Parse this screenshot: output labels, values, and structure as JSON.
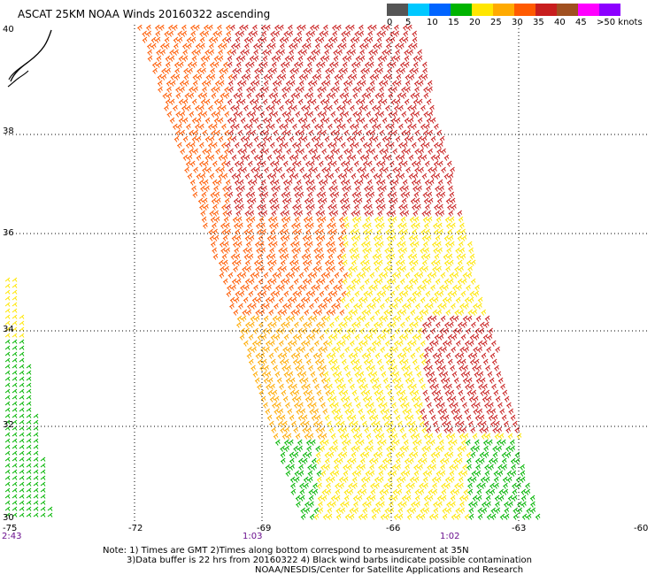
{
  "title": "ASCAT 25KM NOAA Winds 20160322 ascending",
  "legend": {
    "labels": [
      "0",
      "5",
      "10",
      "15",
      "20",
      "25",
      "30",
      "35",
      "40",
      "45",
      ">50 knots"
    ],
    "colors": [
      "#555555",
      "#00c8ff",
      "#0064ff",
      "#00b400",
      "#ffe600",
      "#ffaa00",
      "#ff5a00",
      "#c81e1e",
      "#a05020",
      "#ff00ff",
      "#8c00ff"
    ]
  },
  "map": {
    "lon_ticks": [
      "-75",
      "-72",
      "-69",
      "-66",
      "-63",
      "-60"
    ],
    "lat_ticks": [
      "40",
      "38",
      "36",
      "34",
      "32",
      "30"
    ],
    "times": [
      "2:43",
      "1:03",
      "1:02"
    ],
    "colors": {
      "grid": "#000000",
      "coast": "#000000",
      "time_text": "#6a0f8e"
    }
  },
  "notes": {
    "line1": "Note: 1) Times are GMT 2)Times along bottom correspond to measurement at 35N",
    "line2": "3)Data buffer is 22 hrs from 20160322 4) Black wind barbs indicate possible contamination",
    "line3": "NOAA/NESDIS/Center for Satellite Applications and Research"
  }
}
